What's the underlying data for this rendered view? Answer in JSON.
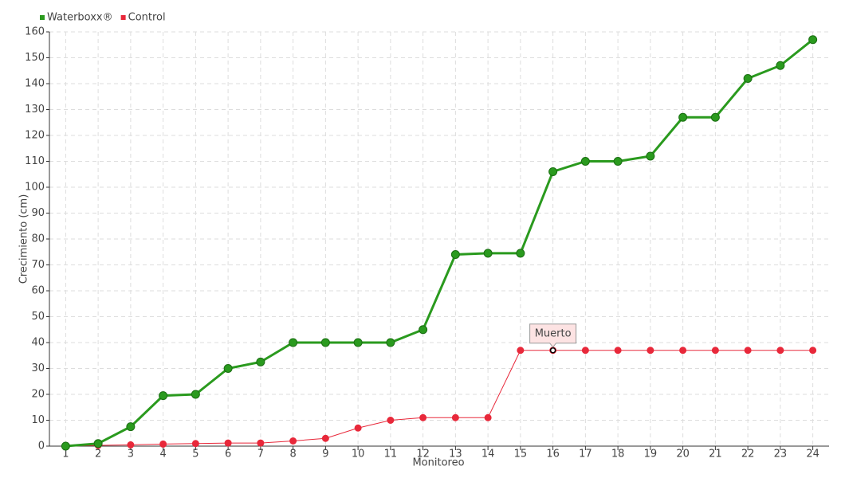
{
  "chart_data": {
    "type": "line",
    "x_label": "Monitoreo",
    "y_label": "Crecimiento (cm)",
    "categories": [
      "1",
      "2",
      "3",
      "4",
      "5",
      "6",
      "7",
      "8",
      "9",
      "10",
      "11",
      "12",
      "13",
      "14",
      "15",
      "16",
      "17",
      "18",
      "19",
      "20",
      "21",
      "22",
      "23",
      "24"
    ],
    "series": [
      {
        "name": "Waterboxx®",
        "color": "#2a9a1e",
        "values": [
          0,
          1,
          7.5,
          19.5,
          20,
          30,
          32.5,
          40,
          40,
          40,
          40,
          45,
          74,
          74.5,
          74.5,
          106,
          110,
          110,
          112,
          127,
          127,
          142,
          147,
          157
        ]
      },
      {
        "name": "Control",
        "color": "#e8283a",
        "values": [
          0,
          0.3,
          0.5,
          0.8,
          1,
          1.2,
          1.2,
          2,
          3,
          7,
          10,
          11,
          11,
          11,
          37,
          37,
          37,
          37,
          37,
          37,
          37,
          37,
          37,
          37
        ]
      }
    ],
    "annotation": {
      "text": "Muerto",
      "category": "16"
    },
    "ylim": [
      0,
      160
    ],
    "yticks": [
      0,
      10,
      20,
      30,
      40,
      50,
      60,
      70,
      80,
      90,
      100,
      110,
      120,
      130,
      140,
      150,
      160
    ],
    "grid": true,
    "legend": "top-left"
  }
}
